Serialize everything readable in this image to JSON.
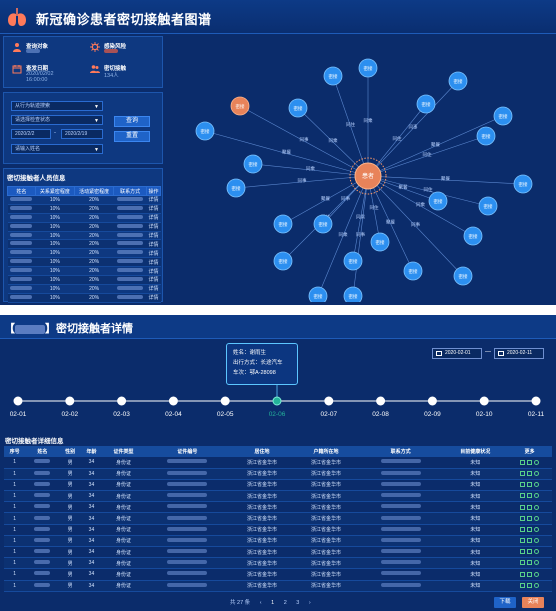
{
  "top": {
    "title": "新冠确诊患者密切接触者图谱",
    "info": {
      "query_label": "查询对象",
      "risk_label": "感染风险",
      "date_label": "查发日期",
      "date_value": "2020/02/02",
      "time_value": "16:00:00",
      "contacts_label": "密切接触",
      "contacts_value": "134人"
    },
    "filters": {
      "select1": "从行为轨迹搜索",
      "select2": "请选择检查状态",
      "date_start": "2020/2/2",
      "date_sep": "-",
      "date_end": "2020/2/19",
      "name_input": "请输入姓名",
      "query_btn": "查询",
      "reset_btn": "重置"
    },
    "table": {
      "title": "密切接触者人员信息",
      "headers": [
        "姓名",
        "关系紧密程度",
        "活动紧密程度",
        "联系方式",
        "操作"
      ],
      "rows": [
        [
          "10%",
          "20%",
          "详情"
        ],
        [
          "10%",
          "20%",
          "详情"
        ],
        [
          "10%",
          "20%",
          "详情"
        ],
        [
          "10%",
          "20%",
          "详情"
        ],
        [
          "10%",
          "20%",
          "详情"
        ],
        [
          "10%",
          "20%",
          "详情"
        ],
        [
          "10%",
          "20%",
          "详情"
        ],
        [
          "10%",
          "20%",
          "详情"
        ],
        [
          "10%",
          "20%",
          "详情"
        ],
        [
          "10%",
          "20%",
          "详情"
        ],
        [
          "10%",
          "20%",
          "详情"
        ],
        [
          "10%",
          "20%",
          "详情"
        ]
      ]
    },
    "graph": {
      "center_label": "患者",
      "node_label": "密接",
      "edge_labels": [
        "同住",
        "同乘",
        "同事",
        "聚餐"
      ]
    }
  },
  "bottom": {
    "title": "密切接触者详情",
    "title_prefix": "【",
    "title_suffix": "】",
    "tooltip": {
      "name": "姓名：谢雨生",
      "travel": "出行方式：长途汽车",
      "vehicle": "车次：鄂A-28098"
    },
    "date_from": "2020-02-01",
    "date_sep": "—",
    "date_to": "2020-02-11",
    "timeline": [
      "02-01",
      "02-02",
      "02-03",
      "02-04",
      "02-05",
      "02-06",
      "02-07",
      "02-08",
      "02-09",
      "02-10",
      "02-11"
    ],
    "timeline_active_index": 5,
    "detail_title": "密切接触者详细信息",
    "headers": [
      "序号",
      "姓名",
      "性别",
      "年龄",
      "证件类型",
      "证件编号",
      "居住地",
      "户籍所在地",
      "联系方式",
      "目前健康状况",
      "更多"
    ],
    "row": {
      "seq": "1",
      "gender": "男",
      "age": "34",
      "idtype": "身份证",
      "living": "浙江省金华市",
      "household": "浙江省金华市",
      "health": "未知"
    },
    "row_count": 12,
    "pager": {
      "total": "共 27 条",
      "prev": "‹",
      "p1": "1",
      "p2": "2",
      "p3": "3",
      "next": "›"
    },
    "download_btn": "下载",
    "close_btn": "关闭",
    "colors": {
      "accent": "#1f63c8",
      "danger": "#e8835a",
      "highlight": "#24b39a"
    }
  }
}
